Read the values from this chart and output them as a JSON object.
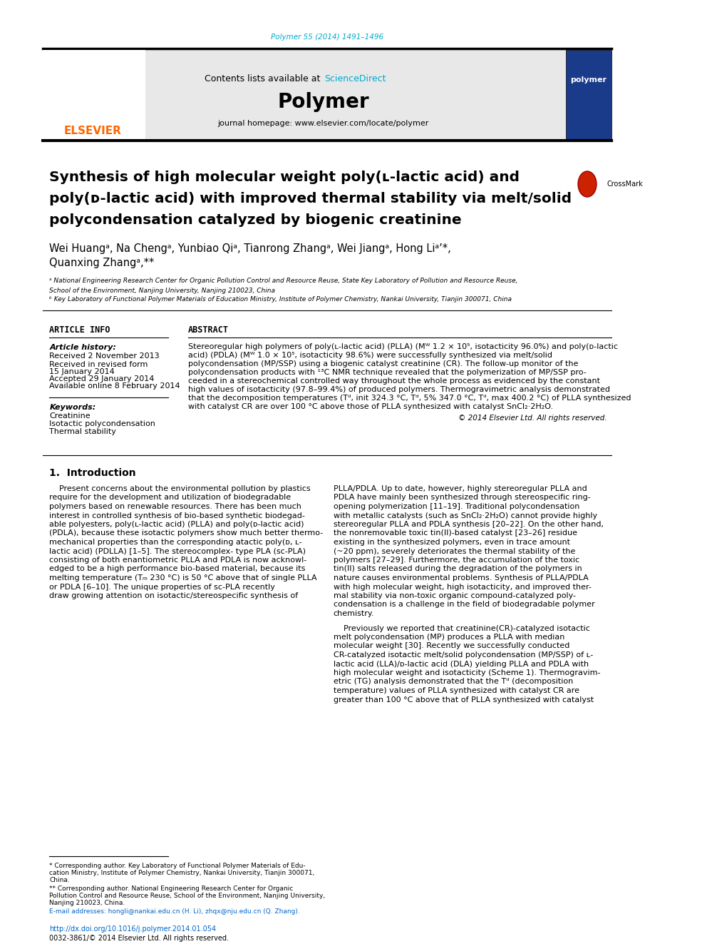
{
  "page_bg": "#ffffff",
  "top_citation": "Polymer 55 (2014) 1491–1496",
  "top_citation_color": "#00aacc",
  "header_bg": "#e8e8e8",
  "header_journal_name": "Polymer",
  "header_content_text": "Contents lists available at ",
  "header_sciencedirect": "ScienceDirect",
  "header_sciencedirect_color": "#00aacc",
  "header_homepage": "journal homepage: www.elsevier.com/locate/polymer",
  "title_line1": "Synthesis of high molecular weight poly(ʟ-lactic acid) and",
  "title_line2": "poly(ᴅ-lactic acid) with improved thermal stability via melt/solid",
  "title_line3": "polycondensation catalyzed by biogenic creatinine",
  "authors": "Wei Huangᵃ, Na Chengᵃ, Yunbiao Qiᵃ, Tianrong Zhangᵃ, Wei Jiangᵃ, Hong Liᵃʸ*,\nQuanxing Zhangᵃ,**",
  "affil_a": "ᵃ National Engineering Research Center for Organic Pollution Control and Resource Reuse, State Key Laboratory of Pollution and Resource Reuse,\nSchool of the Environment, Nanjing University, Nanjing 210023, China",
  "affil_b": "ᵇ Key Laboratory of Functional Polymer Materials of Education Ministry, Institute of Polymer Chemistry, Nankai University, Tianjin 300071, China",
  "article_info_title": "ARTICLE INFO",
  "article_history_title": "Article history:",
  "article_history": "Received 2 November 2013\nReceived in revised form\n15 January 2014\nAccepted 29 January 2014\nAvailable online 8 February 2014",
  "keywords_title": "Keywords:",
  "keywords": "Creatinine\nIsotactic polycondensation\nThermal stability",
  "abstract_title": "ABSTRACT",
  "abstract_text": "Stereoregular high polymers of poly(ʟ-lactic acid) (PLLA) (Mᵂ 1.2 × 10⁵, isotacticity 96.0%) and poly(ᴅ-lactic acid) (PDLA) (Mᵂ 1.0 × 10⁵, isotacticity 98.6%) were successfully synthesized via melt/solid polycondensation (MP/SSP) using a biogenic catalyst creatinine (CR). The follow-up monitor of the polycondensation products with ¹³C NMR technique revealed that the polymerization of MP/SSP proceeded in a stereochemical controlled way throughout the whole process as evidenced by the constant high values of isotacticity (97.8–99.4%) of produced polymers. Thermogravimetric analysis demonstrated that the decomposition temperatures (Tᵈ, init 324.3 °C, Tᵈ, 5% 347.0 °C, Tᵈ, max 400.2 °C) of PLLA synthesized with catalyst CR are over 100 °C above those of PLLA synthesized with catalyst SnCl₂·2H₂O.",
  "copyright": "© 2014 Elsevier Ltd. All rights reserved.",
  "intro_title": "1.  Introduction",
  "intro_col1_p1": "Present concerns about the environmental pollution by plastics require for the development and utilization of biodegradable polymers based on renewable resources. There has been much interest in controlled synthesis of bio-based synthetic biodegradable polyesters, poly(ʟ-lactic acid) (PLLA) and poly(ᴅ-lactic acid) (PDLA), because these isotactic polymers show much better thermomechanical properties than the corresponding atactic poly(ᴅ, ʟ-lactic acid) (PDLLA) [1–5]. The stereocomplex- type PLA (sc-PLA) consisting of both enantiometric PLLA and PDLA is now acknowledged to be a high performance bio-based material, because its melting temperature (Tₘ 230 °C) is 50 °C above that of single PLLA or PDLA [6–10]. The unique properties of sc-PLA recently draw growing attention on isotactic/stereospecific synthesis of",
  "intro_col2_p1": "PLLA/PDLA. Up to date, however, highly stereoregular PLLA and PDLA have mainly been synthesized through stereospecific ring-opening polymerization [11–19]. Traditional polycondensation with metallic catalysts (such as SnCl₂·2H₂O) cannot provide highly stereoregular PLLA and PDLA synthesis [20–22]. On the other hand, the nonremovable toxic tin(II)-based catalyst [23–26] residue existing in the synthesized polymers, even in trace amount (~20 ppm), severely deteriorates the thermal stability of the polymers [27–29]. Furthermore, the accumulation of the toxic tin(II) salts released during the degradation of the polymers in nature causes environmental problems. Synthesis of PLLA/PDLA with high molecular weight, high isotacticity, and improved thermal stability via non-toxic organic compound-catalyzed polycondensation is a challenge in the field of biodegradable polymer chemistry.",
  "intro_col2_p2": "Previously we reported that creatinine(CR)-catalyzed isotactic melt polycondensation (MP) produces a PLLA with median molecular weight [30]. Recently we successfully conducted CR-catalyzed isotactic melt/solid polycondensation (MP/SSP) of ʟ-lactic acid (LLA)/ᴅ-lactic acid (DLA) yielding PLLA and PDLA with high molecular weight and isotacticity (Scheme 1). Thermogravimetric (TG) analysis demonstrated that the Tᵈ (decomposition temperature) values of PLLA synthesized with catalyst CR are greater than 100 °C above that of PLLA synthesized with catalyst",
  "footnote1": "* Corresponding author. Key Laboratory of Functional Polymer Materials of Education Ministry, Institute of Polymer Chemistry, Nankai University, Tianjin 300071, China.",
  "footnote2": "** Corresponding author. National Engineering Research Center for Organic Pollution Control and Resource Reuse, School of the Environment, Nanjing University, Nanjing 210023, China.",
  "email_line": "E-mail addresses: hongli@nankai.edu.cn (H. Li), zhqx@nju.edu.cn (Q. Zhang).",
  "doi_line": "http://dx.doi.org/10.1016/j.polymer.2014.01.054",
  "issn_line": "0032-3861/© 2014 Elsevier Ltd. All rights reserved.",
  "elsevier_color": "#ff6600",
  "link_color": "#0066cc",
  "separator_color": "#000000",
  "text_color": "#000000"
}
